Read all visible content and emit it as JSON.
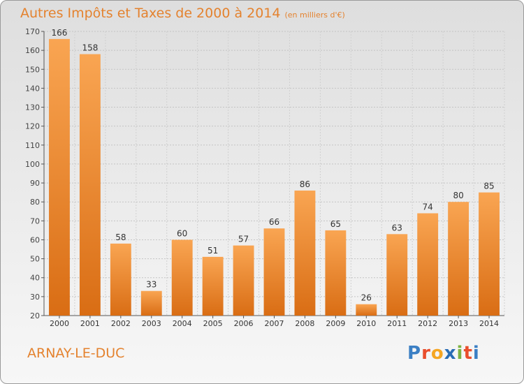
{
  "title": "Autres Impôts et Taxes de 2000 à 2014",
  "unit": "(en milliers d'€)",
  "commune": "ARNAY-LE-DUC",
  "logo": {
    "text": "Proxiti",
    "letters": [
      "P",
      "r",
      "o",
      "x",
      "i",
      "t",
      "i"
    ],
    "colors": [
      "#3b7fc4",
      "#e94e2c",
      "#f5a623",
      "#2a6db5",
      "#7cb342",
      "#e94e2c",
      "#3b7fc4"
    ]
  },
  "colors": {
    "bar_top": "#f9a552",
    "bar_bottom": "#d96d14",
    "title": "#e4822e"
  },
  "chart_data": {
    "type": "bar",
    "categories": [
      "2000",
      "2001",
      "2002",
      "2003",
      "2004",
      "2005",
      "2006",
      "2007",
      "2008",
      "2009",
      "2010",
      "2011",
      "2012",
      "2013",
      "2014"
    ],
    "values": [
      166,
      158,
      58,
      33,
      60,
      51,
      57,
      66,
      86,
      65,
      26,
      63,
      74,
      80,
      85
    ],
    "title": "Autres Impôts et Taxes de 2000 à 2014",
    "xlabel": "",
    "ylabel": "",
    "ylim": [
      20,
      170
    ],
    "yticks": [
      20,
      30,
      40,
      50,
      60,
      70,
      80,
      90,
      100,
      110,
      120,
      130,
      140,
      150,
      160,
      170
    ],
    "grid": true,
    "data_labels": true
  }
}
